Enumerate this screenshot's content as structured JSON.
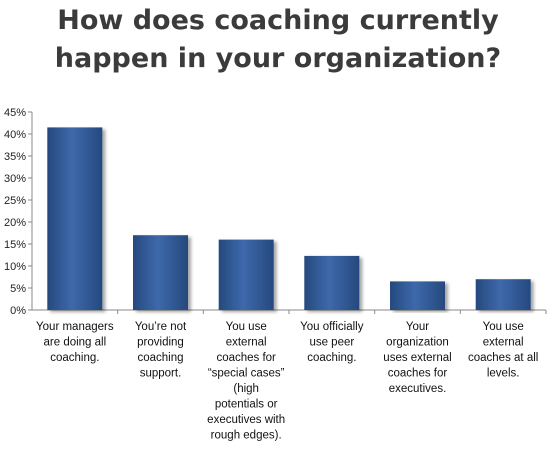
{
  "title_lines": [
    "How does coaching currently",
    "happen in your organization?"
  ],
  "chart_data": {
    "type": "bar",
    "title": "How does coaching currently happen in your organization?",
    "categories": [
      [
        "Your managers",
        "are doing all",
        "coaching."
      ],
      [
        "You’re not",
        "providing",
        "coaching",
        "support."
      ],
      [
        "You use",
        "external",
        "coaches for",
        "“special cases”",
        "(high",
        "potentials or",
        "executives with",
        "rough edges)."
      ],
      [
        "You officially",
        "use peer",
        "coaching."
      ],
      [
        "Your",
        "organization",
        "uses external",
        "coaches for",
        "executives."
      ],
      [
        "You use",
        "external",
        "coaches at all",
        "levels."
      ]
    ],
    "values": [
      41.5,
      17,
      16,
      12.3,
      6.5,
      7
    ],
    "ylim": [
      0,
      45
    ],
    "yticks": [
      "0%",
      "5%",
      "10%",
      "15%",
      "20%",
      "25%",
      "30%",
      "35%",
      "40%",
      "45%"
    ],
    "xlabel": "",
    "ylabel": "",
    "grid": false,
    "bar_color": "#26497e",
    "bar_highlight": "#3d69ab"
  }
}
